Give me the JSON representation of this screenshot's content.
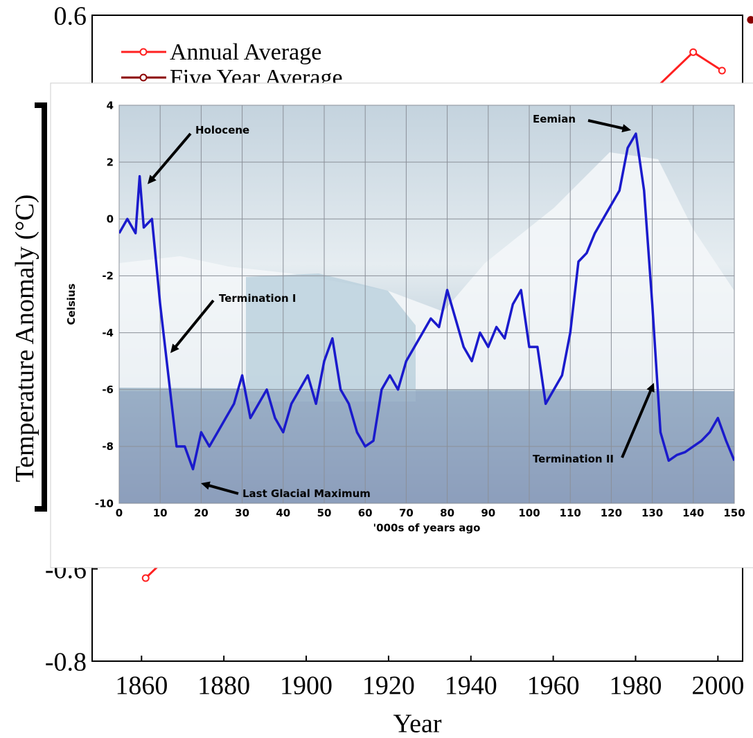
{
  "chart_data": [
    {
      "type": "line",
      "xlabel": "Year",
      "ylabel": "Temperature Anomaly (°C)",
      "xlim": [
        1848,
        2006
      ],
      "xticks": [
        1860,
        1880,
        1900,
        1920,
        1940,
        1960,
        1980,
        2000
      ],
      "ylim": [
        -0.8,
        0.6
      ],
      "yticks": [
        -0.8,
        -0.6,
        0.6
      ],
      "series": [
        {
          "name": "Annual Average",
          "color": "#ff2020",
          "x": [
            1861,
            1994,
            2001
          ],
          "values": [
            -0.62,
            0.52,
            0.48
          ]
        },
        {
          "name": "Five Year Average",
          "color": "#8b0000",
          "x": [
            2008
          ],
          "values": [
            0.59
          ]
        }
      ]
    },
    {
      "type": "line",
      "xlabel": "'000s of years ago",
      "ylabel": "Celsius",
      "xlim": [
        0,
        150
      ],
      "xticks": [
        0,
        10,
        20,
        30,
        40,
        50,
        60,
        70,
        80,
        90,
        100,
        110,
        120,
        130,
        140,
        150
      ],
      "ylim": [
        -10,
        4
      ],
      "yticks": [
        -10,
        -8,
        -6,
        -4,
        -2,
        0,
        2,
        4
      ],
      "grid": true,
      "annotations": [
        "Holocene",
        "Eemian",
        "Termination I",
        "Termination II",
        "Last Glacial Maximum"
      ],
      "series": [
        {
          "color": "#1a1acc",
          "x": [
            0,
            2,
            4,
            5,
            6,
            8,
            10,
            12,
            14,
            16,
            18,
            20,
            22,
            24,
            26,
            28,
            30,
            32,
            34,
            36,
            38,
            40,
            42,
            44,
            46,
            48,
            50,
            52,
            54,
            56,
            58,
            60,
            62,
            64,
            66,
            68,
            70,
            72,
            74,
            76,
            78,
            80,
            82,
            84,
            86,
            88,
            90,
            92,
            94,
            96,
            98,
            100,
            102,
            104,
            106,
            108,
            110,
            112,
            114,
            116,
            118,
            120,
            122,
            124,
            126,
            128,
            130,
            132,
            134,
            136,
            138,
            140,
            142,
            144,
            146,
            148,
            150
          ],
          "values": [
            -0.5,
            0,
            -0.5,
            1.5,
            -0.3,
            0,
            -3,
            -5.5,
            -8,
            -8,
            -8.8,
            -7.5,
            -8,
            -7.5,
            -7,
            -6.5,
            -5.5,
            -7,
            -6.5,
            -6,
            -7,
            -7.5,
            -6.5,
            -6,
            -5.5,
            -6.5,
            -5,
            -4.2,
            -6,
            -6.5,
            -7.5,
            -8,
            -7.8,
            -6,
            -5.5,
            -6,
            -5,
            -4.5,
            -4,
            -3.5,
            -3.8,
            -2.5,
            -3.5,
            -4.5,
            -5,
            -4,
            -4.5,
            -3.8,
            -4.2,
            -3,
            -2.5,
            -4.5,
            -4.5,
            -6.5,
            -6,
            -5.5,
            -4,
            -1.5,
            -1.2,
            -0.5,
            0,
            0.5,
            1,
            2.5,
            3,
            1,
            -3,
            -7.5,
            -8.5,
            -8.3,
            -8.2,
            -8,
            -7.8,
            -7.5,
            -7,
            -7.8,
            -8.5
          ]
        }
      ]
    }
  ]
}
